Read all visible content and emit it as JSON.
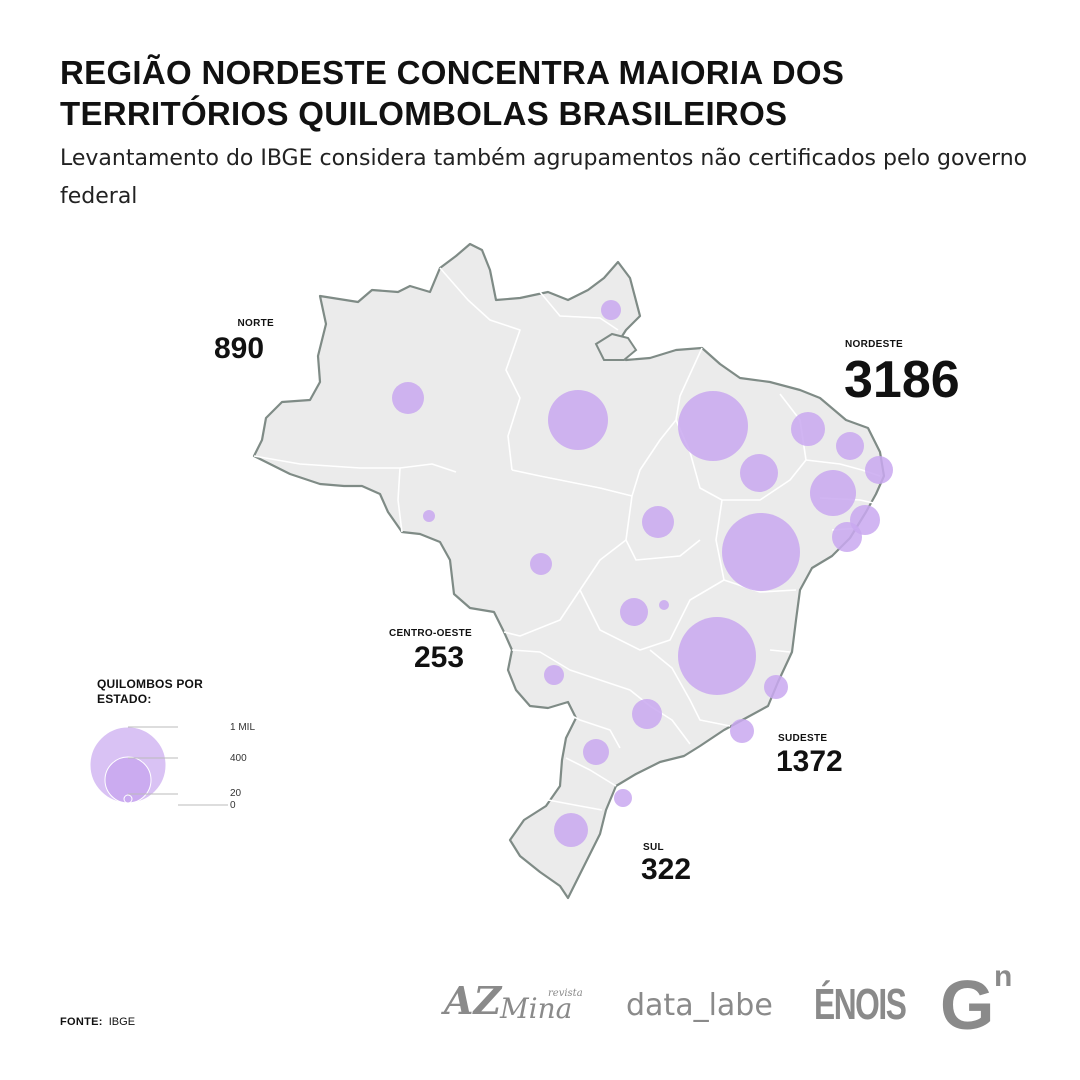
{
  "title": "REGIÃO NORDESTE CONCENTRA MAIORIA DOS TERRITÓRIOS QUILOMBOLAS BRASILEIROS",
  "subtitle": "Levantamento do IBGE considera também agrupamentos não certificados pelo governo federal",
  "colors": {
    "bubble": "#c9a8f0",
    "bubble_stroke": "#b48ee6",
    "land": "#ebebeb",
    "border": "#7f8b86",
    "state_border": "#ffffff",
    "logo": "#8a8a8a"
  },
  "regions": [
    {
      "id": "norte",
      "label": "NORTE",
      "value": "890"
    },
    {
      "id": "nordeste",
      "label": "NORDESTE",
      "value": "3186"
    },
    {
      "id": "centro-oeste",
      "label": "CENTRO-OESTE",
      "value": "253"
    },
    {
      "id": "sudeste",
      "label": "SUDESTE",
      "value": "1372"
    },
    {
      "id": "sul",
      "label": "SUL",
      "value": "322"
    }
  ],
  "legend": {
    "title": "QUILOMBOS POR ESTADO:",
    "ticks": [
      {
        "label": "1 MIL",
        "value": 1000
      },
      {
        "label": "400",
        "value": 400
      },
      {
        "label": "20",
        "value": 20
      },
      {
        "label": "0",
        "value": 0
      }
    ]
  },
  "source": {
    "label": "FONTE:",
    "value": "IBGE"
  },
  "logos": {
    "azmina_main": "AZ",
    "azmina_mina": "Mina",
    "azmina_revista": "revista",
    "datalabe": "data_labe",
    "enois": "ÉNOIS",
    "gn_main": "G",
    "gn_sup": "n"
  }
}
